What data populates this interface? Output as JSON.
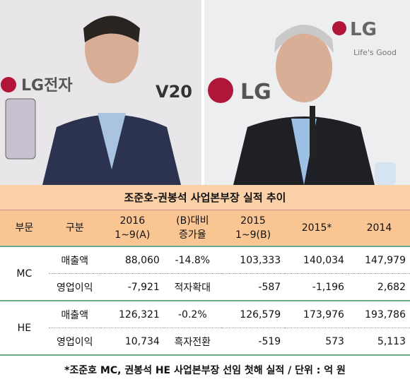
{
  "photos": {
    "left": {
      "logo": "LG전자",
      "model": "V20"
    },
    "right": {
      "logo": "LG",
      "slogan": "Life's Good"
    }
  },
  "table": {
    "title": "조준호-권봉석 사업본부장 실적 추이",
    "header": [
      [
        "부문"
      ],
      [
        "구분"
      ],
      [
        "2016",
        "1~9(A)"
      ],
      [
        "(B)대비",
        "증가율"
      ],
      [
        "2015",
        "1~9(B)"
      ],
      [
        "2015*"
      ],
      [
        "2014"
      ]
    ],
    "groups": [
      {
        "division": "MC",
        "rows": [
          {
            "label": "매출액",
            "values": [
              "88,060",
              "-14.8%",
              "103,333",
              "140,034",
              "147,979"
            ]
          },
          {
            "label": "영업이익",
            "values": [
              "-7,921",
              "적자확대",
              "-587",
              "-1,196",
              "2,682"
            ]
          }
        ]
      },
      {
        "division": "HE",
        "rows": [
          {
            "label": "매출액",
            "values": [
              "126,321",
              "-0.2%",
              "126,579",
              "173,976",
              "193,786"
            ]
          },
          {
            "label": "영업이익",
            "values": [
              "10,734",
              "흑자전환",
              "-519",
              "573",
              "5,113"
            ]
          }
        ]
      }
    ],
    "footnote": "*조준호 MC, 권봉석 HE 사업본부장 선임 첫해 실적 / 단위 : 억 원"
  }
}
